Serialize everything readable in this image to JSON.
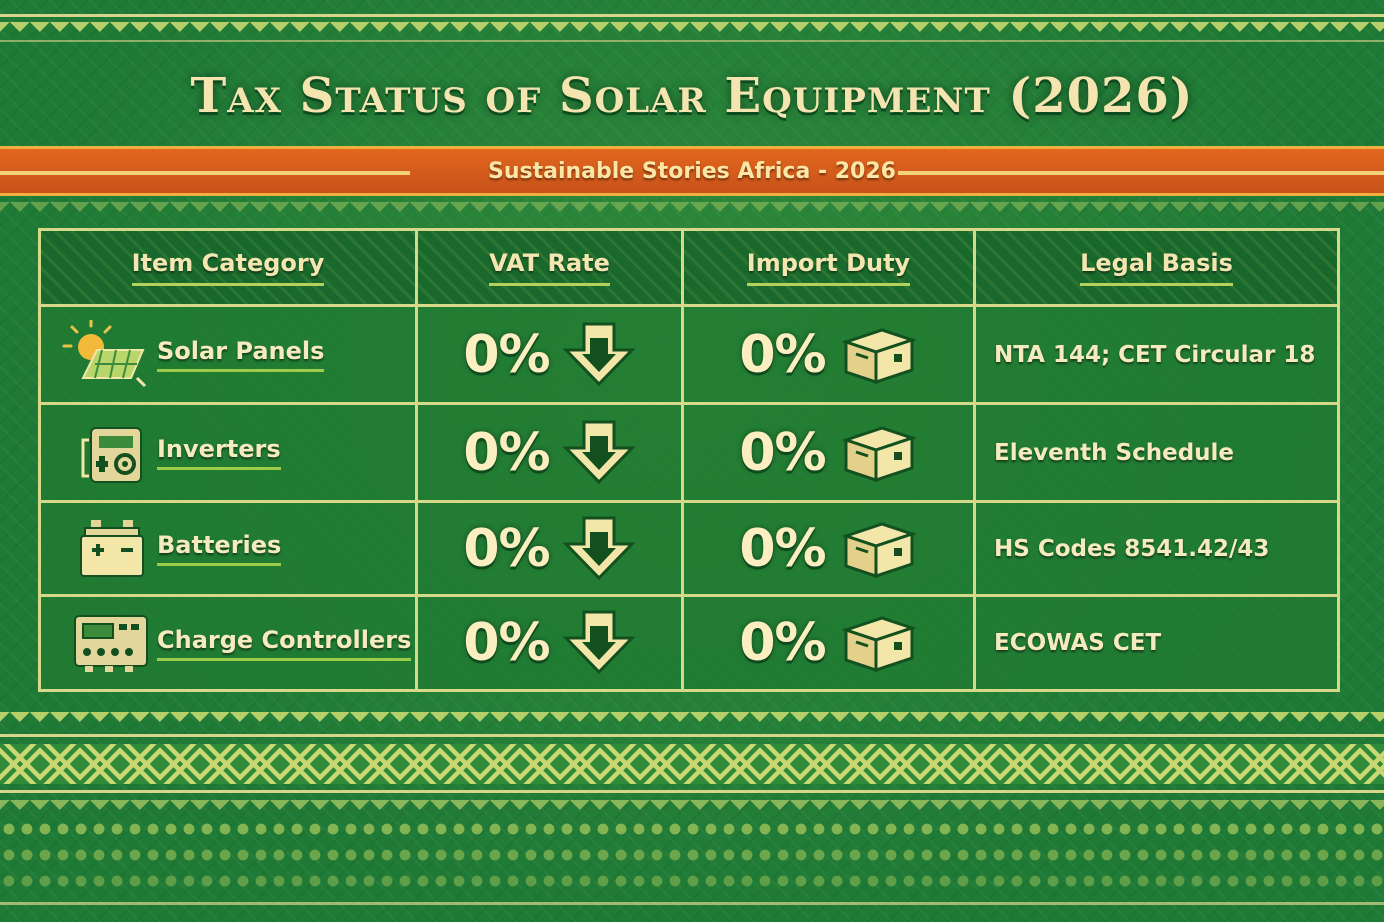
{
  "title": "Tax Status of Solar Equipment (2026)",
  "subtitle": "Sustainable Stories Africa - 2026",
  "table": {
    "headers": [
      "Item Category",
      "VAT Rate",
      "Import Duty",
      "Legal Basis"
    ],
    "rows": [
      {
        "category": "Solar Panels",
        "icon": "solar-panel-icon",
        "vat": "0%",
        "duty": "0%",
        "legal": "NTA 144; CET Circular 18"
      },
      {
        "category": "Inverters",
        "icon": "inverter-icon",
        "vat": "0%",
        "duty": "0%",
        "legal": "Eleventh Schedule"
      },
      {
        "category": "Batteries",
        "icon": "battery-icon",
        "vat": "0%",
        "duty": "0%",
        "legal": "HS Codes 8541.42/43"
      },
      {
        "category": "Charge Controllers",
        "icon": "charge-controller-icon",
        "vat": "0%",
        "duty": "0%",
        "legal": "ECOWAS CET"
      }
    ]
  },
  "colors": {
    "background": "#1f7a36",
    "accent_gold": "#f3e4b0",
    "banner_orange": "#d85e1b"
  }
}
